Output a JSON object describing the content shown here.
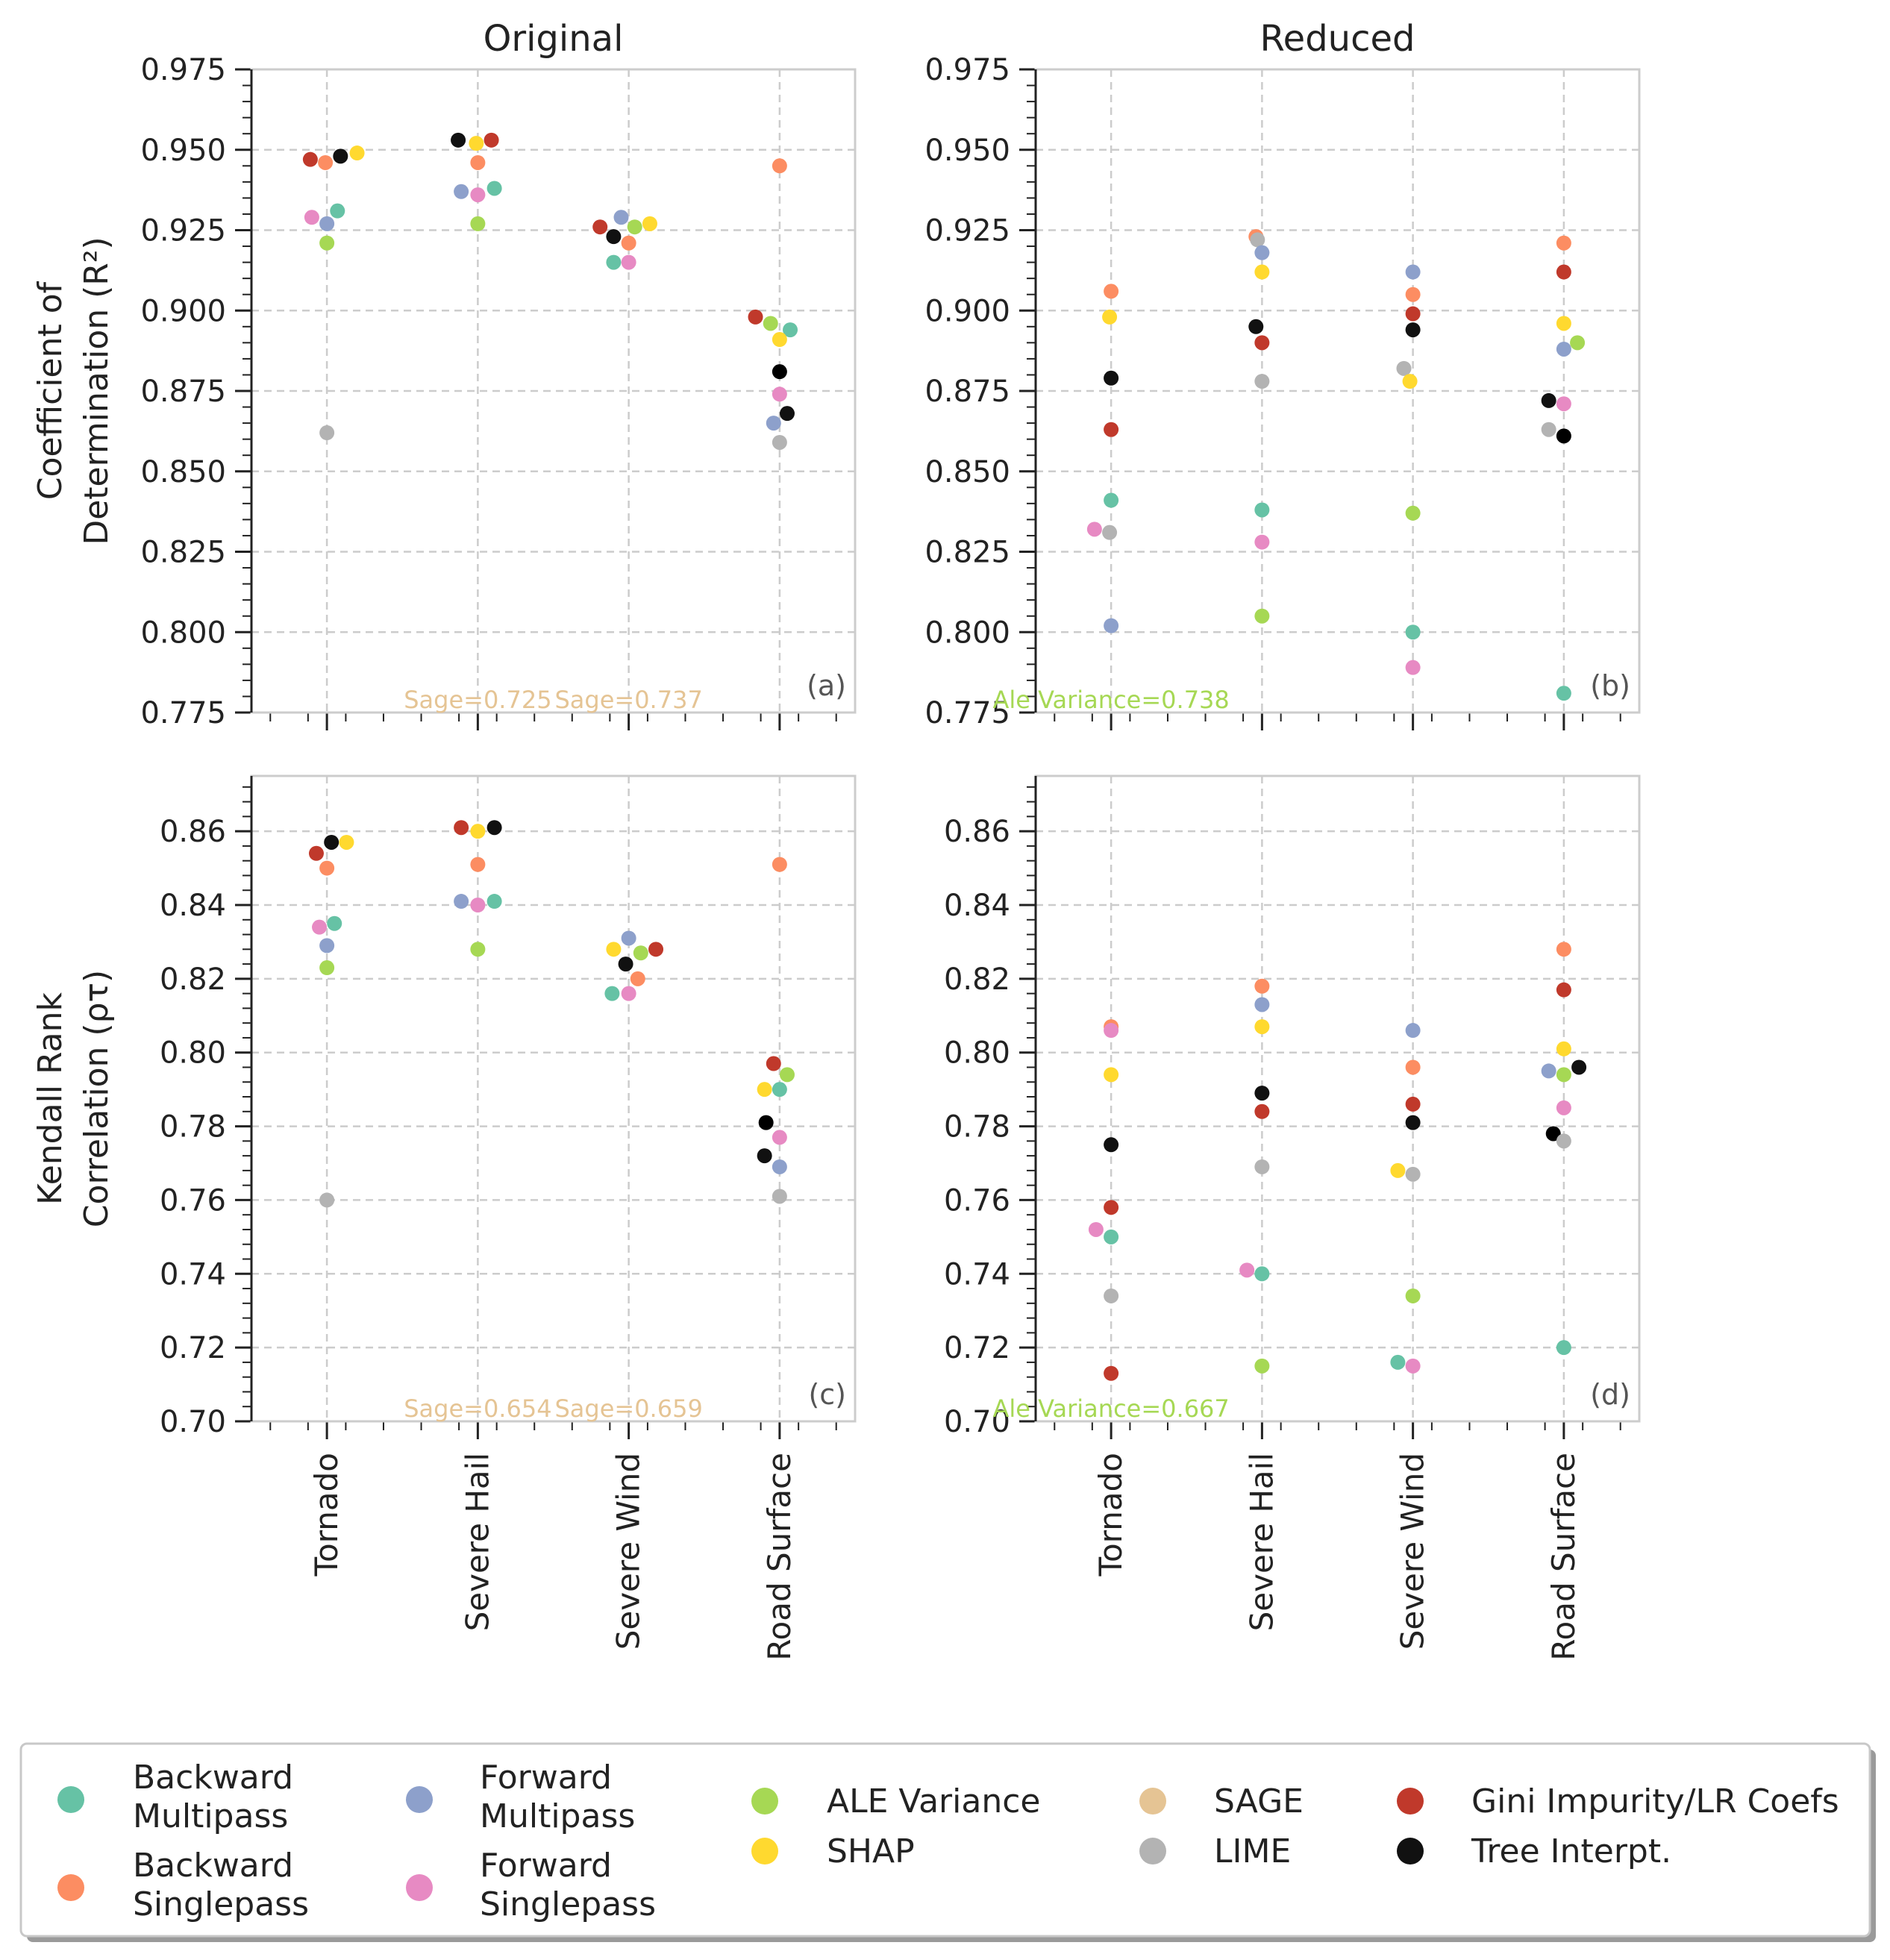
{
  "chart_data": [
    {
      "type": "scatter",
      "panel": "a",
      "title": "Original",
      "ylabel_lines": [
        "Coefficient of",
        "Determination (R²)"
      ],
      "ylim": [
        0.775,
        0.975
      ],
      "yticks": [
        "0.975",
        "0.950",
        "0.925",
        "0.900",
        "0.875",
        "0.850",
        "0.825",
        "0.800",
        "0.775"
      ],
      "categories": [
        "Tornado",
        "Severe Hail",
        "Severe Wind",
        "Road Surface"
      ],
      "annotations": [
        {
          "text": "Sage=0.725",
          "color": "#e5c494",
          "category": 1,
          "offset": 0
        },
        {
          "text": "Sage=0.737",
          "color": "#e5c494",
          "category": 2,
          "offset": 0
        }
      ],
      "points": [
        {
          "method": 8,
          "cat": 0,
          "off": -0.11,
          "y": 0.947
        },
        {
          "method": 1,
          "cat": 0,
          "off": -0.01,
          "y": 0.946
        },
        {
          "method": 9,
          "cat": 0,
          "off": 0.09,
          "y": 0.948
        },
        {
          "method": 5,
          "cat": 0,
          "off": 0.2,
          "y": 0.949
        },
        {
          "method": 3,
          "cat": 0,
          "off": -0.1,
          "y": 0.929
        },
        {
          "method": 2,
          "cat": 0,
          "off": 0.0,
          "y": 0.927
        },
        {
          "method": 0,
          "cat": 0,
          "off": 0.07,
          "y": 0.931
        },
        {
          "method": 4,
          "cat": 0,
          "off": 0.0,
          "y": 0.921
        },
        {
          "method": 7,
          "cat": 0,
          "off": 0.0,
          "y": 0.862
        },
        {
          "method": 9,
          "cat": 1,
          "off": -0.13,
          "y": 0.953
        },
        {
          "method": 5,
          "cat": 1,
          "off": -0.01,
          "y": 0.952
        },
        {
          "method": 8,
          "cat": 1,
          "off": 0.09,
          "y": 0.953
        },
        {
          "method": 1,
          "cat": 1,
          "off": 0.0,
          "y": 0.946
        },
        {
          "method": 2,
          "cat": 1,
          "off": -0.11,
          "y": 0.937
        },
        {
          "method": 3,
          "cat": 1,
          "off": 0.0,
          "y": 0.936
        },
        {
          "method": 0,
          "cat": 1,
          "off": 0.11,
          "y": 0.938
        },
        {
          "method": 4,
          "cat": 1,
          "off": 0.0,
          "y": 0.927
        },
        {
          "method": 8,
          "cat": 2,
          "off": -0.19,
          "y": 0.926
        },
        {
          "method": 9,
          "cat": 2,
          "off": -0.1,
          "y": 0.923
        },
        {
          "method": 2,
          "cat": 2,
          "off": -0.05,
          "y": 0.929
        },
        {
          "method": 1,
          "cat": 2,
          "off": 0.0,
          "y": 0.921
        },
        {
          "method": 4,
          "cat": 2,
          "off": 0.04,
          "y": 0.926
        },
        {
          "method": 5,
          "cat": 2,
          "off": 0.14,
          "y": 0.927
        },
        {
          "method": 0,
          "cat": 2,
          "off": -0.1,
          "y": 0.915
        },
        {
          "method": 3,
          "cat": 2,
          "off": 0.0,
          "y": 0.915
        },
        {
          "method": 1,
          "cat": 3,
          "off": 0.0,
          "y": 0.945
        },
        {
          "method": 8,
          "cat": 3,
          "off": -0.16,
          "y": 0.898
        },
        {
          "method": 4,
          "cat": 3,
          "off": -0.06,
          "y": 0.896
        },
        {
          "method": 0,
          "cat": 3,
          "off": 0.07,
          "y": 0.894
        },
        {
          "method": 5,
          "cat": 3,
          "off": 0.0,
          "y": 0.891
        },
        {
          "method": 10,
          "cat": 3,
          "off": 0.0,
          "y": 0.881
        },
        {
          "method": 3,
          "cat": 3,
          "off": 0.0,
          "y": 0.874
        },
        {
          "method": 9,
          "cat": 3,
          "off": 0.05,
          "y": 0.868
        },
        {
          "method": 2,
          "cat": 3,
          "off": -0.04,
          "y": 0.865
        },
        {
          "method": 7,
          "cat": 3,
          "off": 0.0,
          "y": 0.859
        }
      ]
    },
    {
      "type": "scatter",
      "panel": "b",
      "title": "Reduced",
      "ylabel_lines": [],
      "ylim": [
        0.775,
        0.975
      ],
      "yticks": [
        "0.975",
        "0.950",
        "0.925",
        "0.900",
        "0.875",
        "0.850",
        "0.825",
        "0.800",
        "0.775"
      ],
      "categories": [
        "Tornado",
        "Severe Hail",
        "Severe Wind",
        "Road Surface"
      ],
      "annotations": [
        {
          "text": "Ale Variance=0.738",
          "color": "#a6d854",
          "category": 0,
          "offset": 0
        }
      ],
      "points": [
        {
          "method": 1,
          "cat": 0,
          "off": 0.0,
          "y": 0.906
        },
        {
          "method": 5,
          "cat": 0,
          "off": -0.01,
          "y": 0.898
        },
        {
          "method": 9,
          "cat": 0,
          "off": 0.0,
          "y": 0.879
        },
        {
          "method": 8,
          "cat": 0,
          "off": 0.0,
          "y": 0.863
        },
        {
          "method": 0,
          "cat": 0,
          "off": 0.0,
          "y": 0.841
        },
        {
          "method": 3,
          "cat": 0,
          "off": -0.11,
          "y": 0.832
        },
        {
          "method": 7,
          "cat": 0,
          "off": -0.01,
          "y": 0.831
        },
        {
          "method": 2,
          "cat": 0,
          "off": 0.0,
          "y": 0.802
        },
        {
          "method": 1,
          "cat": 1,
          "off": -0.04,
          "y": 0.923
        },
        {
          "method": 7,
          "cat": 1,
          "off": -0.03,
          "y": 0.922
        },
        {
          "method": 2,
          "cat": 1,
          "off": 0.0,
          "y": 0.918
        },
        {
          "method": 5,
          "cat": 1,
          "off": 0.0,
          "y": 0.912
        },
        {
          "method": 9,
          "cat": 1,
          "off": -0.04,
          "y": 0.895
        },
        {
          "method": 8,
          "cat": 1,
          "off": 0.0,
          "y": 0.89
        },
        {
          "method": 7,
          "cat": 1,
          "off": 0.0,
          "y": 0.878
        },
        {
          "method": 0,
          "cat": 1,
          "off": 0.0,
          "y": 0.838
        },
        {
          "method": 3,
          "cat": 1,
          "off": 0.0,
          "y": 0.828
        },
        {
          "method": 4,
          "cat": 1,
          "off": 0.0,
          "y": 0.805
        },
        {
          "method": 2,
          "cat": 2,
          "off": 0.0,
          "y": 0.912
        },
        {
          "method": 1,
          "cat": 2,
          "off": 0.0,
          "y": 0.905
        },
        {
          "method": 8,
          "cat": 2,
          "off": 0.0,
          "y": 0.899
        },
        {
          "method": 9,
          "cat": 2,
          "off": 0.0,
          "y": 0.894
        },
        {
          "method": 7,
          "cat": 2,
          "off": -0.06,
          "y": 0.882
        },
        {
          "method": 5,
          "cat": 2,
          "off": -0.02,
          "y": 0.878
        },
        {
          "method": 4,
          "cat": 2,
          "off": 0.0,
          "y": 0.837
        },
        {
          "method": 0,
          "cat": 2,
          "off": 0.0,
          "y": 0.8
        },
        {
          "method": 3,
          "cat": 2,
          "off": 0.0,
          "y": 0.789
        },
        {
          "method": 1,
          "cat": 3,
          "off": 0.0,
          "y": 0.921
        },
        {
          "method": 8,
          "cat": 3,
          "off": 0.0,
          "y": 0.912
        },
        {
          "method": 5,
          "cat": 3,
          "off": 0.0,
          "y": 0.896
        },
        {
          "method": 4,
          "cat": 3,
          "off": 0.09,
          "y": 0.89
        },
        {
          "method": 2,
          "cat": 3,
          "off": 0.0,
          "y": 0.888
        },
        {
          "method": 9,
          "cat": 3,
          "off": -0.1,
          "y": 0.872
        },
        {
          "method": 3,
          "cat": 3,
          "off": 0.0,
          "y": 0.871
        },
        {
          "method": 7,
          "cat": 3,
          "off": -0.1,
          "y": 0.863
        },
        {
          "method": 10,
          "cat": 3,
          "off": 0.0,
          "y": 0.861
        },
        {
          "method": 0,
          "cat": 3,
          "off": 0.0,
          "y": 0.781
        }
      ]
    },
    {
      "type": "scatter",
      "panel": "c",
      "title": "",
      "ylabel_lines": [
        "Kendall Rank",
        "Correlation (ρτ)"
      ],
      "ylim": [
        0.7,
        0.875
      ],
      "yticks": [
        "0.86",
        "0.84",
        "0.82",
        "0.80",
        "0.78",
        "0.76",
        "0.74",
        "0.72",
        "0.70"
      ],
      "categories": [
        "Tornado",
        "Severe Hail",
        "Severe Wind",
        "Road Surface"
      ],
      "annotations": [
        {
          "text": "Sage=0.654",
          "color": "#e5c494",
          "category": 1,
          "offset": 0
        },
        {
          "text": "Sage=0.659",
          "color": "#e5c494",
          "category": 2,
          "offset": 0
        }
      ],
      "points": [
        {
          "method": 8,
          "cat": 0,
          "off": -0.07,
          "y": 0.854
        },
        {
          "method": 9,
          "cat": 0,
          "off": 0.03,
          "y": 0.857
        },
        {
          "method": 5,
          "cat": 0,
          "off": 0.13,
          "y": 0.857
        },
        {
          "method": 1,
          "cat": 0,
          "off": 0.0,
          "y": 0.85
        },
        {
          "method": 3,
          "cat": 0,
          "off": -0.05,
          "y": 0.834
        },
        {
          "method": 0,
          "cat": 0,
          "off": 0.05,
          "y": 0.835
        },
        {
          "method": 2,
          "cat": 0,
          "off": 0.0,
          "y": 0.829
        },
        {
          "method": 4,
          "cat": 0,
          "off": 0.0,
          "y": 0.823
        },
        {
          "method": 7,
          "cat": 0,
          "off": 0.0,
          "y": 0.76
        },
        {
          "method": 8,
          "cat": 1,
          "off": -0.11,
          "y": 0.861
        },
        {
          "method": 5,
          "cat": 1,
          "off": 0.0,
          "y": 0.86
        },
        {
          "method": 9,
          "cat": 1,
          "off": 0.11,
          "y": 0.861
        },
        {
          "method": 1,
          "cat": 1,
          "off": 0.0,
          "y": 0.851
        },
        {
          "method": 2,
          "cat": 1,
          "off": -0.11,
          "y": 0.841
        },
        {
          "method": 3,
          "cat": 1,
          "off": 0.0,
          "y": 0.84
        },
        {
          "method": 0,
          "cat": 1,
          "off": 0.11,
          "y": 0.841
        },
        {
          "method": 4,
          "cat": 1,
          "off": 0.0,
          "y": 0.828
        },
        {
          "method": 5,
          "cat": 2,
          "off": -0.1,
          "y": 0.828
        },
        {
          "method": 2,
          "cat": 2,
          "off": 0.0,
          "y": 0.831
        },
        {
          "method": 4,
          "cat": 2,
          "off": 0.08,
          "y": 0.827
        },
        {
          "method": 8,
          "cat": 2,
          "off": 0.18,
          "y": 0.828
        },
        {
          "method": 9,
          "cat": 2,
          "off": -0.02,
          "y": 0.824
        },
        {
          "method": 1,
          "cat": 2,
          "off": 0.06,
          "y": 0.82
        },
        {
          "method": 0,
          "cat": 2,
          "off": -0.11,
          "y": 0.816
        },
        {
          "method": 3,
          "cat": 2,
          "off": 0.0,
          "y": 0.816
        },
        {
          "method": 1,
          "cat": 3,
          "off": 0.0,
          "y": 0.851
        },
        {
          "method": 8,
          "cat": 3,
          "off": -0.04,
          "y": 0.797
        },
        {
          "method": 4,
          "cat": 3,
          "off": 0.05,
          "y": 0.794
        },
        {
          "method": 5,
          "cat": 3,
          "off": -0.1,
          "y": 0.79
        },
        {
          "method": 0,
          "cat": 3,
          "off": 0.0,
          "y": 0.79
        },
        {
          "method": 10,
          "cat": 3,
          "off": -0.09,
          "y": 0.781
        },
        {
          "method": 3,
          "cat": 3,
          "off": 0.0,
          "y": 0.777
        },
        {
          "method": 9,
          "cat": 3,
          "off": -0.1,
          "y": 0.772
        },
        {
          "method": 2,
          "cat": 3,
          "off": 0.0,
          "y": 0.769
        },
        {
          "method": 7,
          "cat": 3,
          "off": 0.0,
          "y": 0.761
        }
      ]
    },
    {
      "type": "scatter",
      "panel": "d",
      "title": "",
      "ylabel_lines": [],
      "ylim": [
        0.7,
        0.875
      ],
      "yticks": [
        "0.86",
        "0.84",
        "0.82",
        "0.80",
        "0.78",
        "0.76",
        "0.74",
        "0.72",
        "0.70"
      ],
      "categories": [
        "Tornado",
        "Severe Hail",
        "Severe Wind",
        "Road Surface"
      ],
      "annotations": [
        {
          "text": "Ale Variance=0.667",
          "color": "#a6d854",
          "category": 0,
          "offset": 0
        }
      ],
      "points": [
        {
          "method": 1,
          "cat": 0,
          "off": 0.0,
          "y": 0.807
        },
        {
          "method": 3,
          "cat": 0,
          "off": 0.0,
          "y": 0.806
        },
        {
          "method": 5,
          "cat": 0,
          "off": 0.0,
          "y": 0.794
        },
        {
          "method": 9,
          "cat": 0,
          "off": 0.0,
          "y": 0.775
        },
        {
          "method": 8,
          "cat": 0,
          "off": 0.0,
          "y": 0.758
        },
        {
          "method": 3,
          "cat": 0,
          "off": -0.1,
          "y": 0.752
        },
        {
          "method": 0,
          "cat": 0,
          "off": 0.0,
          "y": 0.75
        },
        {
          "method": 7,
          "cat": 0,
          "off": 0.0,
          "y": 0.734
        },
        {
          "method": 8,
          "cat": 0,
          "off": 0.0,
          "y": 0.713
        },
        {
          "method": 1,
          "cat": 1,
          "off": 0.0,
          "y": 0.818
        },
        {
          "method": 2,
          "cat": 1,
          "off": 0.0,
          "y": 0.813
        },
        {
          "method": 5,
          "cat": 1,
          "off": 0.0,
          "y": 0.807
        },
        {
          "method": 9,
          "cat": 1,
          "off": 0.0,
          "y": 0.789
        },
        {
          "method": 8,
          "cat": 1,
          "off": 0.0,
          "y": 0.784
        },
        {
          "method": 7,
          "cat": 1,
          "off": 0.0,
          "y": 0.769
        },
        {
          "method": 3,
          "cat": 1,
          "off": -0.1,
          "y": 0.741
        },
        {
          "method": 0,
          "cat": 1,
          "off": 0.0,
          "y": 0.74
        },
        {
          "method": 4,
          "cat": 1,
          "off": 0.0,
          "y": 0.715
        },
        {
          "method": 2,
          "cat": 2,
          "off": 0.0,
          "y": 0.806
        },
        {
          "method": 1,
          "cat": 2,
          "off": 0.0,
          "y": 0.796
        },
        {
          "method": 8,
          "cat": 2,
          "off": 0.0,
          "y": 0.786
        },
        {
          "method": 9,
          "cat": 2,
          "off": 0.0,
          "y": 0.781
        },
        {
          "method": 5,
          "cat": 2,
          "off": -0.1,
          "y": 0.768
        },
        {
          "method": 7,
          "cat": 2,
          "off": 0.0,
          "y": 0.767
        },
        {
          "method": 4,
          "cat": 2,
          "off": 0.0,
          "y": 0.734
        },
        {
          "method": 0,
          "cat": 2,
          "off": -0.1,
          "y": 0.716
        },
        {
          "method": 3,
          "cat": 2,
          "off": 0.0,
          "y": 0.715
        },
        {
          "method": 1,
          "cat": 3,
          "off": 0.0,
          "y": 0.828
        },
        {
          "method": 8,
          "cat": 3,
          "off": 0.0,
          "y": 0.817
        },
        {
          "method": 5,
          "cat": 3,
          "off": 0.0,
          "y": 0.801
        },
        {
          "method": 2,
          "cat": 3,
          "off": -0.1,
          "y": 0.795
        },
        {
          "method": 4,
          "cat": 3,
          "off": 0.0,
          "y": 0.794
        },
        {
          "method": 9,
          "cat": 3,
          "off": 0.1,
          "y": 0.796
        },
        {
          "method": 3,
          "cat": 3,
          "off": 0.0,
          "y": 0.785
        },
        {
          "method": 10,
          "cat": 3,
          "off": -0.07,
          "y": 0.778
        },
        {
          "method": 7,
          "cat": 3,
          "off": 0.0,
          "y": 0.776
        },
        {
          "method": 0,
          "cat": 3,
          "off": 0.0,
          "y": 0.72
        }
      ]
    }
  ],
  "legend": {
    "placement": "bottom",
    "items": [
      {
        "lines": [
          "Backward",
          "Multipass"
        ],
        "color": "#66c2a5"
      },
      {
        "lines": [
          "Backward",
          "Singlepass"
        ],
        "color": "#fc8d62"
      },
      {
        "lines": [
          "Forward",
          "Multipass"
        ],
        "color": "#8da0cb"
      },
      {
        "lines": [
          "Forward",
          "Singlepass"
        ],
        "color": "#e78ac3"
      },
      {
        "lines": [
          "ALE Variance"
        ],
        "color": "#a6d854"
      },
      {
        "lines": [
          "SHAP"
        ],
        "color": "#ffd92f"
      },
      {
        "lines": [
          "SAGE"
        ],
        "color": "#e5c494"
      },
      {
        "lines": [
          "LIME"
        ],
        "color": "#b3b3b3"
      },
      {
        "lines": [
          "Gini Impurity/LR Coefs"
        ],
        "color": "#c0392b"
      },
      {
        "lines": [
          "Tree Interpt."
        ],
        "color": "#111111"
      }
    ]
  }
}
